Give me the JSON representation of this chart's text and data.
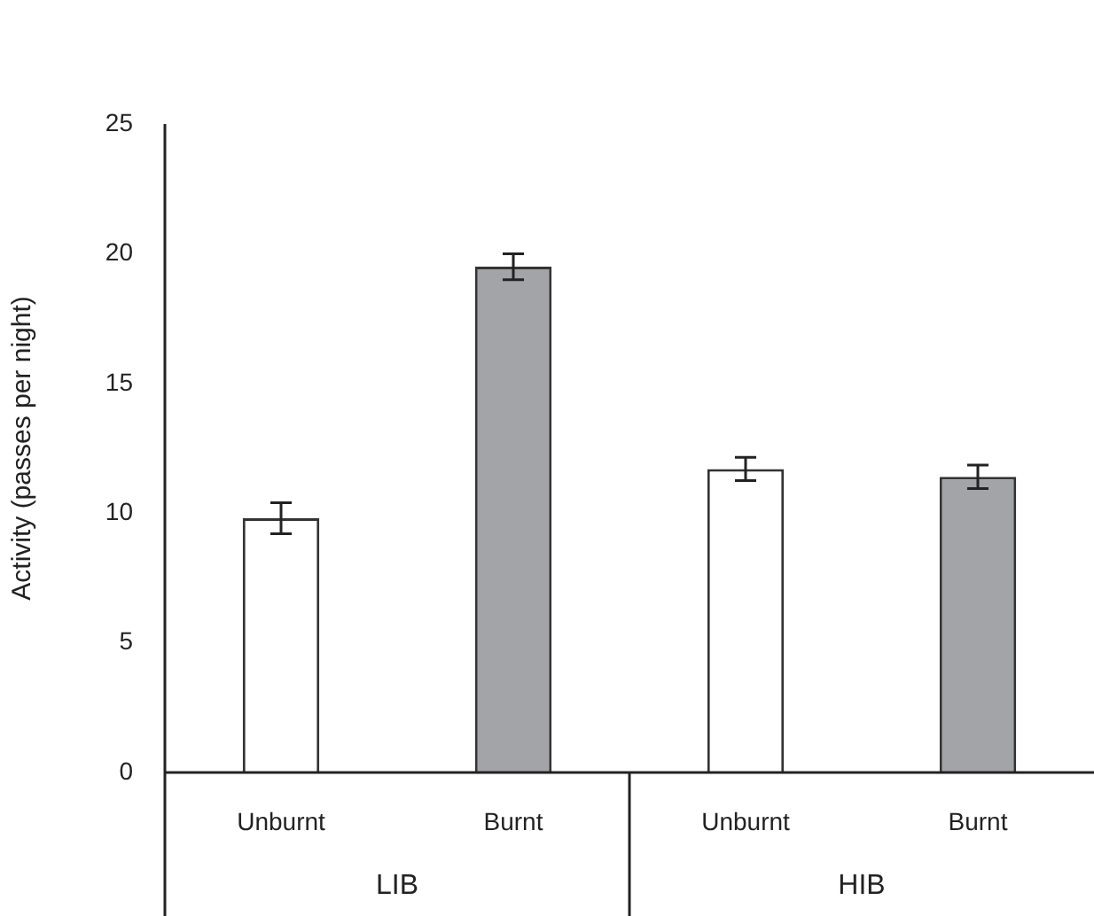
{
  "chart_data": {
    "type": "bar",
    "ylabel": "Activity (passes per night)",
    "categories": [
      "Unburnt",
      "Burnt",
      "Unburnt",
      "Burnt"
    ],
    "values": [
      9.8,
      19.5,
      11.7,
      11.4
    ],
    "errors": [
      0.6,
      0.5,
      0.45,
      0.45
    ],
    "colors": [
      "#ffffff",
      "#a3a4a8",
      "#ffffff",
      "#a3a4a8"
    ],
    "ylim": [
      0,
      25
    ],
    "yticks": [
      0,
      5,
      10,
      15,
      20,
      25
    ],
    "annotations": [
      "LIB",
      "HIB"
    ],
    "grid": false,
    "legend": false
  }
}
